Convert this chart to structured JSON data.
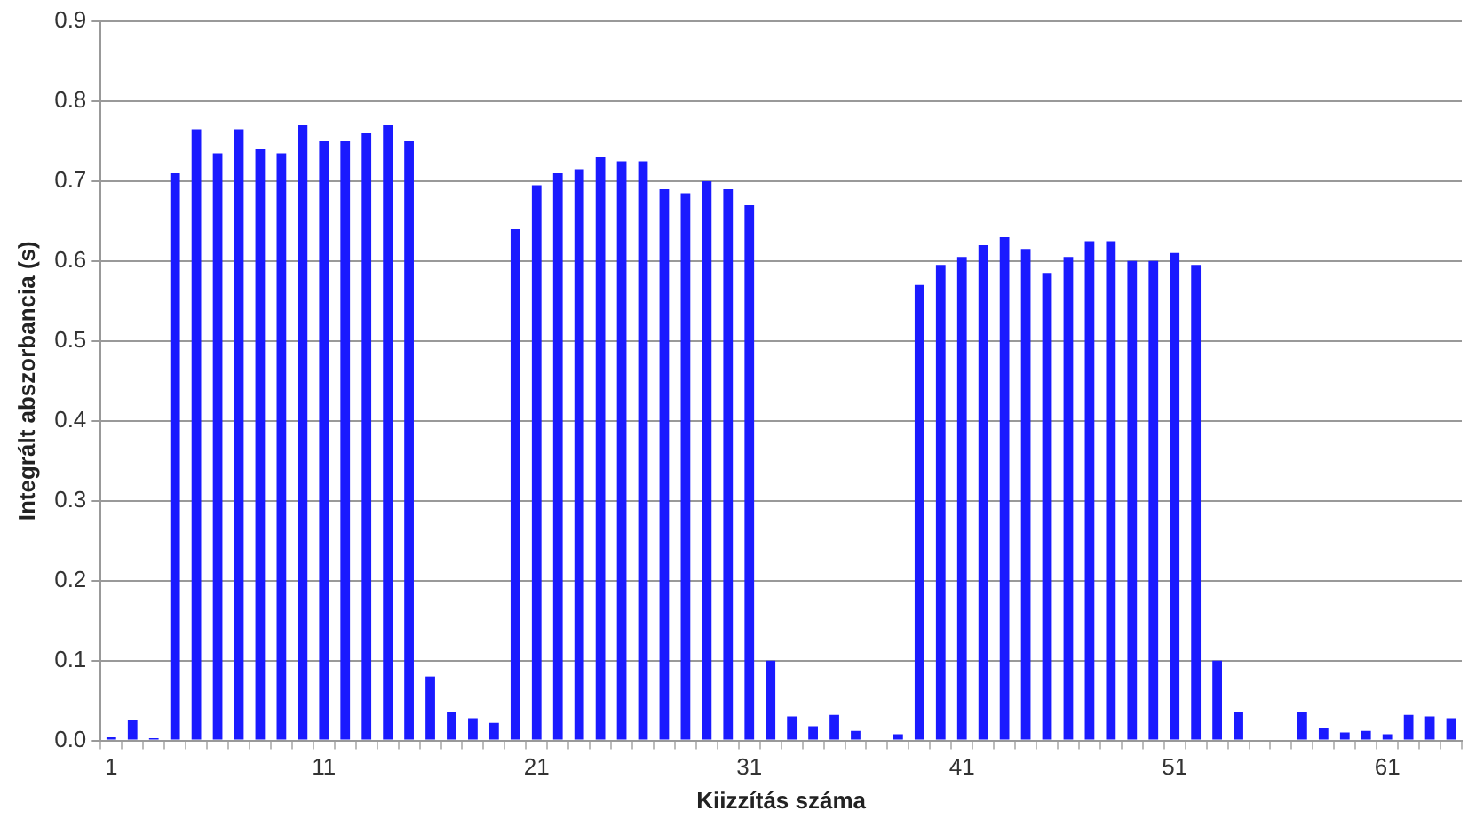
{
  "chart_data": {
    "type": "bar",
    "xlabel": "Kiizzítás száma",
    "ylabel": "Integrált abszorbancia (s)",
    "categories": [
      "1",
      null,
      null,
      null,
      null,
      null,
      null,
      null,
      null,
      null,
      "11",
      null,
      null,
      null,
      null,
      null,
      null,
      null,
      null,
      null,
      "21",
      null,
      null,
      null,
      null,
      null,
      null,
      null,
      null,
      null,
      "31",
      null,
      null,
      null,
      null,
      null,
      null,
      null,
      null,
      null,
      "41",
      null,
      null,
      null,
      null,
      null,
      null,
      null,
      null,
      null,
      "51",
      null,
      null,
      null,
      null,
      null,
      null,
      null,
      null,
      null,
      "61",
      null,
      null,
      null
    ],
    "values": [
      0.004,
      0.025,
      0.003,
      0.71,
      0.765,
      0.735,
      0.765,
      0.74,
      0.735,
      0.77,
      0.75,
      0.75,
      0.76,
      0.77,
      0.75,
      0.08,
      0.035,
      0.028,
      0.022,
      0.64,
      0.695,
      0.71,
      0.715,
      0.73,
      0.725,
      0.725,
      0.69,
      0.685,
      0.7,
      0.69,
      0.67,
      0.1,
      0.03,
      0.018,
      0.032,
      0.012,
      0,
      0.008,
      0.57,
      0.595,
      0.605,
      0.62,
      0.63,
      0.615,
      0.585,
      0.605,
      0.625,
      0.625,
      0.6,
      0.6,
      0.61,
      0.595,
      0.1,
      0.035,
      0,
      0,
      0.035,
      0.015,
      0.01,
      0.012,
      0.008,
      0.032,
      0.03,
      0.028
    ],
    "color": "#1a1aff",
    "ylim": [
      0,
      0.9
    ],
    "yticks": [
      {
        "value": 0,
        "label": "0.0"
      },
      0.1,
      0.2,
      0.3,
      0.4,
      0.5,
      0.6,
      0.7,
      0.8,
      0.9
    ],
    "grid": "y",
    "legend": false
  }
}
